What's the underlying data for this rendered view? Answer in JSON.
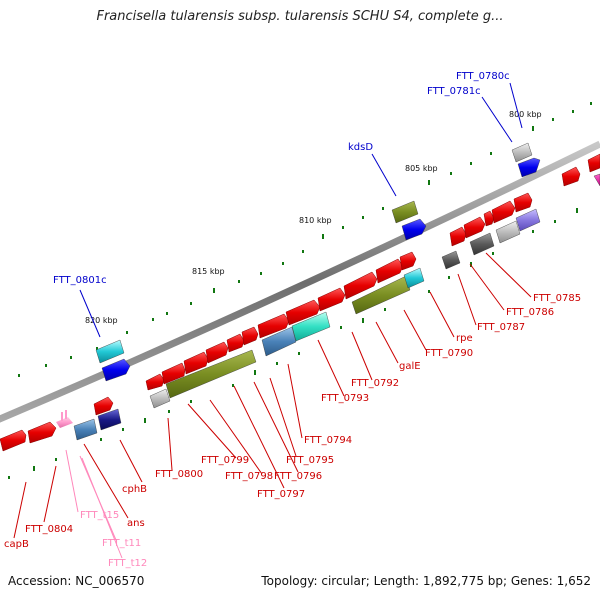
{
  "title": "Francisella tularensis subsp. tularensis SCHU S4, complete g...",
  "footer": {
    "accession": "Accession: NC_006570",
    "summary": "Topology: circular; Length: 1,892,775 bp; Genes: 1,652"
  },
  "colors": {
    "backbone": "#7a7a7a",
    "cds": "#ee0000",
    "rna": "#ff99cc",
    "gene_label_red": "#cc0000",
    "gene_label_blue": "#0000cc",
    "rna_label_pink": "#ff88bb",
    "tick": "#117711"
  },
  "ruler_labels": [
    "800 kbp",
    "805 kbp",
    "810 kbp",
    "815 kbp",
    "820 kbp"
  ],
  "labels": {
    "blue": [
      "FTT_0780c",
      "FTT_0781c",
      "kdsD",
      "FTT_0801c"
    ],
    "red": [
      "FTT_0785",
      "FTT_0786",
      "FTT_0787",
      "rpe",
      "FTT_0790",
      "galE",
      "FTT_0792",
      "FTT_0793",
      "FTT_0794",
      "FTT_0795",
      "FTT_0796",
      "FTT_0797",
      "FTT_0798",
      "FTT_0799",
      "FTT_0800",
      "cphB",
      "ans",
      "FTT_0804",
      "capB"
    ],
    "pink": [
      "FTT_t15",
      "FTT_t11",
      "FTT_t12"
    ]
  }
}
